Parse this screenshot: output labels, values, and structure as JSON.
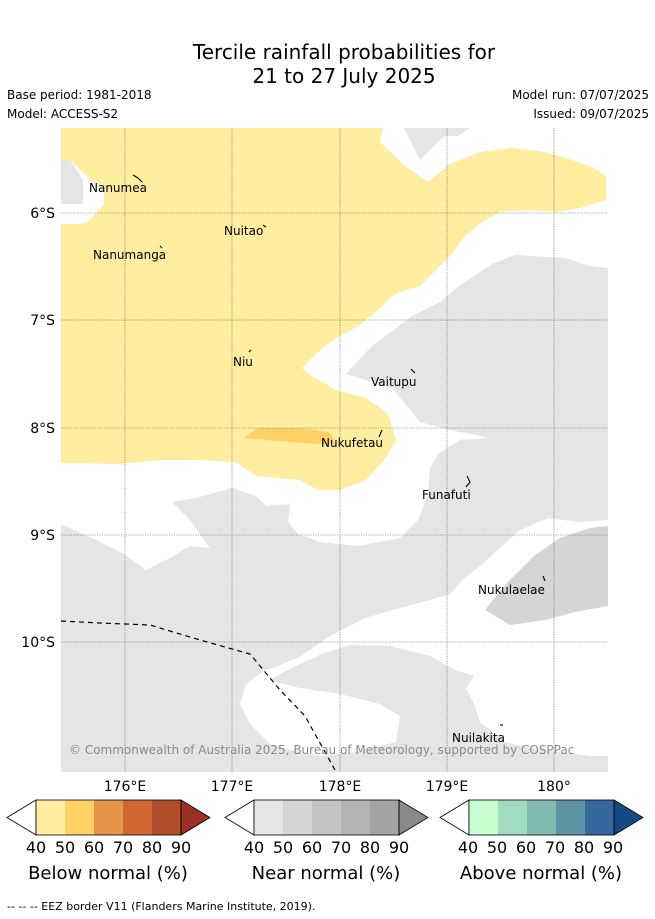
{
  "title_line1": "Tercile rainfall probabilities for",
  "title_line2": "21 to 27 July 2025",
  "base_period": "Base period: 1981-2018",
  "model": "Model: ACCESS-S2",
  "model_run": "Model run: 07/07/2025",
  "issued": "Issued: 09/07/2025",
  "latitudes": [
    "6°S",
    "7°S",
    "8°S",
    "9°S",
    "10°S"
  ],
  "longitudes": [
    "176°E",
    "177°E",
    "178°E",
    "179°E",
    "180°"
  ],
  "islands": [
    {
      "name": "Nanumea"
    },
    {
      "name": "Nuitao"
    },
    {
      "name": "Nanumanga"
    },
    {
      "name": "Niu"
    },
    {
      "name": "Vaitupu"
    },
    {
      "name": "Nukufetau"
    },
    {
      "name": "Funafuti"
    },
    {
      "name": "Nukulaelae"
    },
    {
      "name": "Nuilakita"
    }
  ],
  "copyright": "© Commonwealth of Australia 2025, Bureau of Meteorology, supported by COSPPac",
  "legend": {
    "ticks": [
      "40",
      "50",
      "60",
      "70",
      "80",
      "90"
    ],
    "below": {
      "label": "Below normal (%)",
      "colors": [
        "#ffeda0",
        "#fed166",
        "#e4954a",
        "#d06631",
        "#b14d29",
        "#9a3125"
      ]
    },
    "near": {
      "label": "Near normal (%)",
      "colors": [
        "#e5e5e5",
        "#d5d5d5",
        "#c4c4c4",
        "#b4b4b4",
        "#a3a3a3",
        "#8a8a8a"
      ]
    },
    "above": {
      "label": "Above normal (%)",
      "colors": [
        "#c8ffd0",
        "#a2dcbf",
        "#82b9b0",
        "#5d93a3",
        "#36679e",
        "#164a85"
      ]
    }
  },
  "eez_note": "-- -- -- EEZ border V11 (Flanders Marine Institute, 2019)."
}
